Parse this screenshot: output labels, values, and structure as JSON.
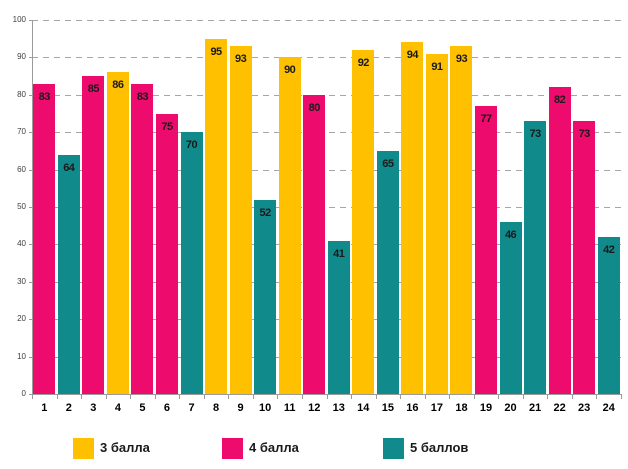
{
  "chart": {
    "background_color": "#FFFFFF",
    "gridline_color": "#A6A6A6",
    "axis_color": "#9B9B9B",
    "value_label_color": "#1A1A1A",
    "y_tick_label_color": "#3F3F3F",
    "category_label_color": "#000000"
  },
  "chart_data": {
    "type": "bar",
    "title": "",
    "xlabel": "",
    "ylabel": "",
    "ylim": [
      0,
      100
    ],
    "ytick_step": 10,
    "grid": "horizontal-dashed",
    "legend_position": "bottom",
    "categories": [
      "1",
      "2",
      "3",
      "4",
      "5",
      "6",
      "7",
      "8",
      "9",
      "10",
      "11",
      "12",
      "13",
      "14",
      "15",
      "16",
      "17",
      "18",
      "19",
      "20",
      "21",
      "22",
      "23",
      "24"
    ],
    "series_legend": [
      {
        "name": "3 балла",
        "color": "#FFC000"
      },
      {
        "name": "4 балла",
        "color": "#ED0C6E"
      },
      {
        "name": "5 баллов",
        "color": "#118A8C"
      }
    ],
    "bars": [
      {
        "category": "1",
        "value": 83,
        "series": "4 балла"
      },
      {
        "category": "2",
        "value": 64,
        "series": "5 баллов"
      },
      {
        "category": "3",
        "value": 85,
        "series": "4 балла"
      },
      {
        "category": "4",
        "value": 86,
        "series": "3 балла"
      },
      {
        "category": "5",
        "value": 83,
        "series": "4 балла"
      },
      {
        "category": "6",
        "value": 75,
        "series": "4 балла"
      },
      {
        "category": "7",
        "value": 70,
        "series": "5 баллов"
      },
      {
        "category": "8",
        "value": 95,
        "series": "3 балла"
      },
      {
        "category": "9",
        "value": 93,
        "series": "3 балла"
      },
      {
        "category": "10",
        "value": 52,
        "series": "5 баллов"
      },
      {
        "category": "11",
        "value": 90,
        "series": "3 балла"
      },
      {
        "category": "12",
        "value": 80,
        "series": "4 балла"
      },
      {
        "category": "13",
        "value": 41,
        "series": "5 баллов"
      },
      {
        "category": "14",
        "value": 92,
        "series": "3 балла"
      },
      {
        "category": "15",
        "value": 65,
        "series": "5 баллов"
      },
      {
        "category": "16",
        "value": 94,
        "series": "3 балла"
      },
      {
        "category": "17",
        "value": 91,
        "series": "3 балла"
      },
      {
        "category": "18",
        "value": 93,
        "series": "3 балла"
      },
      {
        "category": "19",
        "value": 77,
        "series": "4 балла"
      },
      {
        "category": "20",
        "value": 46,
        "series": "5 баллов"
      },
      {
        "category": "21",
        "value": 73,
        "series": "5 баллов"
      },
      {
        "category": "22",
        "value": 82,
        "series": "4 балла"
      },
      {
        "category": "23",
        "value": 73,
        "series": "4 балла"
      },
      {
        "category": "24",
        "value": 42,
        "series": "5 баллов"
      }
    ]
  }
}
